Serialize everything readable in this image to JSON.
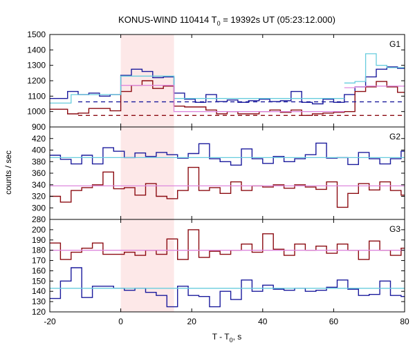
{
  "chart_data": {
    "type": "line",
    "title_main": "KONUS-WIND 110414 T",
    "title_sub": "0",
    "title_rest": " = 19392s UT (05:23:12.000)",
    "xlabel_main": "T - T",
    "xlabel_sub": "0",
    "xlabel_rest": ", s",
    "ylabel": "counts / sec",
    "xlim": [
      -20,
      80
    ],
    "x_ticks": [
      "-20",
      "0",
      "20",
      "40",
      "60",
      "80"
    ],
    "x_tick_values": [
      -20,
      0,
      20,
      40,
      60,
      80
    ],
    "grid": false,
    "highlight_interval": [
      0,
      15
    ],
    "colors": {
      "blue": "#1a1a9c",
      "red": "#8b0a10",
      "cyan": "#66ccdd",
      "pink": "#dd88dd",
      "shade": "#fde8e8"
    },
    "panels": [
      {
        "label": "G1",
        "ylim": [
          900,
          1500
        ],
        "y_ticks": [
          "900",
          "1000",
          "1100",
          "1200",
          "1300",
          "1400",
          "1500"
        ],
        "y_tick_values": [
          900,
          1000,
          1100,
          1200,
          1300,
          1400,
          1500
        ],
        "series": [
          {
            "color": "blue",
            "kind": "step",
            "x": [
              -20,
              -15,
              -12,
              -9,
              -6,
              -3,
              0,
              3,
              6,
              9,
              12,
              15,
              18,
              21,
              24,
              27,
              30,
              33,
              36,
              39,
              42,
              45,
              48,
              51,
              54,
              57,
              60,
              63,
              66,
              69,
              72,
              75,
              78,
              81
            ],
            "y": [
              1085,
              1130,
              1110,
              1120,
              1100,
              1110,
              1235,
              1275,
              1260,
              1220,
              1225,
              1120,
              1080,
              1060,
              1110,
              1065,
              1075,
              1060,
              1070,
              1080,
              1065,
              1070,
              1130,
              1060,
              1050,
              1080,
              1060,
              1110,
              1160,
              1225,
              1275,
              1290,
              1280
            ]
          },
          {
            "color": "red",
            "kind": "step",
            "x": [
              -20,
              -15,
              -12,
              -9,
              -6,
              -3,
              0,
              3,
              6,
              9,
              12,
              15,
              18,
              21,
              24,
              27,
              30,
              33,
              36,
              39,
              42,
              45,
              48,
              51,
              54,
              57,
              60,
              63,
              66,
              69,
              72,
              75,
              78,
              81
            ],
            "y": [
              1015,
              985,
              990,
              1020,
              1020,
              1005,
              1130,
              1170,
              1200,
              1150,
              1165,
              1035,
              1030,
              1030,
              1010,
              985,
              1000,
              985,
              985,
              1000,
              1010,
              995,
              1010,
              975,
              985,
              990,
              995,
              1000,
              1130,
              1160,
              1195,
              1160,
              1125
            ]
          },
          {
            "color": "cyan",
            "kind": "step",
            "x": [
              -20,
              -14,
              0,
              15,
              63
            ],
            "y": [
              1055,
              1110,
              1230,
              1085
            ]
          },
          {
            "color": "cyan",
            "kind": "step",
            "x": [
              63,
              66,
              69,
              72,
              75,
              81
            ],
            "y": [
              1185,
              1195,
              1375,
              1300,
              1285
            ]
          },
          {
            "color": "pink",
            "kind": "step",
            "x": [
              0,
              15,
              63
            ],
            "y": [
              1170,
              1000
            ]
          },
          {
            "color": "pink",
            "kind": "step",
            "x": [
              63,
              66,
              69,
              72,
              81
            ],
            "y": [
              1155,
              1160,
              1165,
              1165
            ]
          },
          {
            "color": "blue",
            "kind": "dashed",
            "x": [
              -12,
              80
            ],
            "y": [
              1063,
              1063
            ]
          },
          {
            "color": "red",
            "kind": "dashed",
            "x": [
              -12,
              80
            ],
            "y": [
              975,
              975
            ]
          }
        ]
      },
      {
        "label": "G2",
        "ylim": [
          280,
          440
        ],
        "y_ticks": [
          "280",
          "300",
          "320",
          "340",
          "360",
          "380",
          "400",
          "420"
        ],
        "y_tick_values": [
          280,
          300,
          320,
          340,
          360,
          380,
          400,
          420
        ],
        "series": [
          {
            "color": "blue",
            "kind": "step",
            "x": [
              -20,
              -17,
              -14,
              -11,
              -8,
              -5,
              -2,
              1,
              4,
              7,
              10,
              13,
              16,
              19,
              22,
              25,
              28,
              31,
              34,
              37,
              40,
              43,
              46,
              49,
              52,
              55,
              58,
              61,
              64,
              67,
              70,
              73,
              76,
              79,
              81
            ],
            "y": [
              391,
              384,
              376,
              391,
              376,
              404,
              398,
              387,
              395,
              389,
              396,
              392,
              386,
              394,
              411,
              385,
              380,
              374,
              402,
              385,
              377,
              389,
              380,
              385,
              392,
              412,
              386,
              387,
              375,
              396,
              385,
              376,
              385,
              398
            ]
          },
          {
            "color": "red",
            "kind": "step",
            "x": [
              -20,
              -17,
              -14,
              -11,
              -8,
              -5,
              -2,
              1,
              4,
              7,
              10,
              13,
              16,
              19,
              22,
              25,
              28,
              31,
              34,
              37,
              40,
              43,
              46,
              49,
              52,
              55,
              58,
              61,
              64,
              67,
              70,
              73,
              76,
              79,
              81
            ],
            "y": [
              320,
              310,
              330,
              335,
              340,
              362,
              333,
              335,
              322,
              342,
              320,
              316,
              330,
              370,
              330,
              335,
              325,
              345,
              330,
              338,
              336,
              340,
              334,
              340,
              336,
              332,
              345,
              301,
              325,
              342,
              331,
              345,
              330,
              322
            ]
          },
          {
            "color": "cyan",
            "kind": "line",
            "x": [
              -20,
              80
            ],
            "y": [
              387,
              387
            ]
          },
          {
            "color": "pink",
            "kind": "line",
            "x": [
              -20,
              80
            ],
            "y": [
              338,
              338
            ]
          }
        ]
      },
      {
        "label": "G3",
        "ylim": [
          120,
          210
        ],
        "y_ticks": [
          "120",
          "130",
          "140",
          "150",
          "160",
          "170",
          "180",
          "190",
          "200"
        ],
        "y_tick_values": [
          120,
          130,
          140,
          150,
          160,
          170,
          180,
          190,
          200
        ],
        "series": [
          {
            "color": "red",
            "kind": "step",
            "x": [
              -20,
              -17,
              -14,
              -11,
              -8,
              -5,
              -2,
              1,
              4,
              7,
              10,
              13,
              16,
              19,
              22,
              25,
              28,
              31,
              34,
              37,
              40,
              43,
              46,
              49,
              52,
              55,
              58,
              61,
              64,
              67,
              70,
              73,
              76,
              79,
              81
            ],
            "y": [
              187,
              171,
              178,
              182,
              187,
              176,
              176,
              178,
              175,
              180,
              176,
              191,
              171,
              200,
              173,
              179,
              176,
              180,
              186,
              178,
              196,
              181,
              175,
              186,
              180,
              184,
              177,
              186,
              180,
              171,
              189,
              180,
              175,
              182
            ]
          },
          {
            "color": "blue",
            "kind": "step",
            "x": [
              -20,
              -17,
              -14,
              -11,
              -8,
              -5,
              -2,
              1,
              4,
              7,
              10,
              13,
              16,
              19,
              22,
              25,
              28,
              31,
              34,
              37,
              40,
              43,
              46,
              49,
              52,
              55,
              58,
              61,
              64,
              67,
              70,
              73,
              76,
              79,
              81
            ],
            "y": [
              133,
              150,
              163,
              134,
              145,
              145,
              143,
              141,
              143,
              139,
              136,
              125,
              145,
              136,
              135,
              125,
              140,
              132,
              151,
              140,
              146,
              142,
              141,
              143,
              140,
              141,
              144,
              151,
              142,
              136,
              137,
              150,
              136,
              135
            ]
          },
          {
            "color": "cyan",
            "kind": "line",
            "x": [
              -20,
              80
            ],
            "y": [
              143,
              143
            ]
          },
          {
            "color": "pink",
            "kind": "line",
            "x": [
              -20,
              80
            ],
            "y": [
              180,
              180
            ]
          }
        ]
      }
    ]
  }
}
